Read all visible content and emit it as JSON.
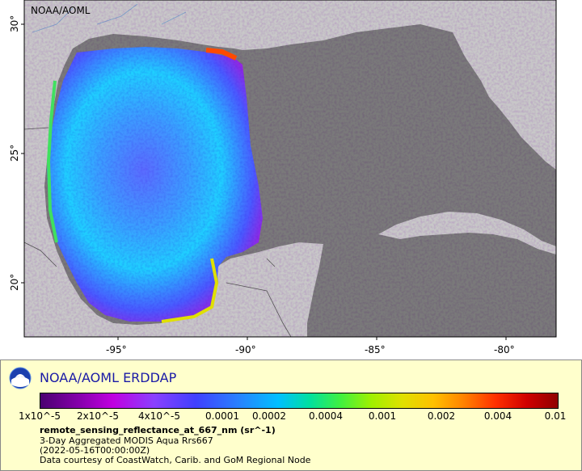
{
  "map": {
    "watermark": "NOAA/AOML",
    "lon_ticks": [
      "-95°",
      "-90°",
      "-85°",
      "-80°"
    ],
    "lat_ticks": [
      "30°",
      "25°",
      "20°"
    ],
    "colors": {
      "ocean_missing": "#7a7a7a",
      "land": "#c8c8c8",
      "border": "#555555"
    }
  },
  "panel": {
    "title": "NOAA/AOML ERDDAP",
    "colorbar_labels": [
      "1x10^-5",
      "2x10^-5",
      "4x10^-5",
      "0.0001",
      "0.0002",
      "0.0004",
      "0.001",
      "0.002",
      "0.004",
      "0.01"
    ],
    "variable": "remote_sensing_reflectance_at_667_nm (sr^-1)",
    "line1": "3-Day Aggregated MODIS Aqua Rrs667",
    "line2": "(2022-05-16T00:00:00Z)",
    "line3": "Data courtesy of CoastWatch, Carib. and GoM Regional Node"
  }
}
